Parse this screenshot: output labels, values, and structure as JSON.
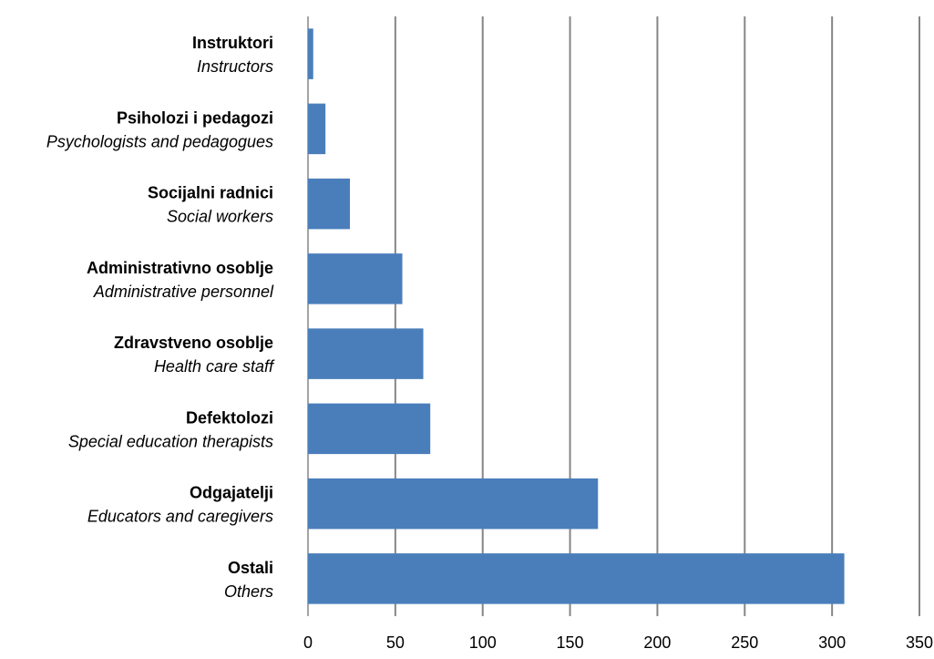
{
  "chart_data": {
    "type": "bar",
    "orientation": "horizontal",
    "categories": [
      {
        "label": "Instruktori",
        "translation": "Instructors"
      },
      {
        "label": "Psiholozi i pedagozi",
        "translation": "Psychologists and pedagogues"
      },
      {
        "label": "Socijalni radnici",
        "translation": "Social workers"
      },
      {
        "label": "Administrativno osoblje",
        "translation": "Administrative personnel"
      },
      {
        "label": "Zdravstveno osoblje",
        "translation": "Health care staff"
      },
      {
        "label": "Defektolozi",
        "translation": "Special education therapists"
      },
      {
        "label": "Odgajatelji",
        "translation": "Educators and caregivers"
      },
      {
        "label": "Ostali",
        "translation": "Others"
      }
    ],
    "values": [
      3,
      10,
      24,
      54,
      66,
      70,
      166,
      307
    ],
    "xlim": [
      0,
      350
    ],
    "xticks": [
      "0",
      "50",
      "100",
      "150",
      "200",
      "250",
      "300",
      "350"
    ],
    "xtick_values": [
      0,
      50,
      100,
      150,
      200,
      250,
      300,
      350
    ],
    "grid": "vertical",
    "legend": "none",
    "bar_color": "#4a7ebb",
    "grid_color": "#868686"
  }
}
